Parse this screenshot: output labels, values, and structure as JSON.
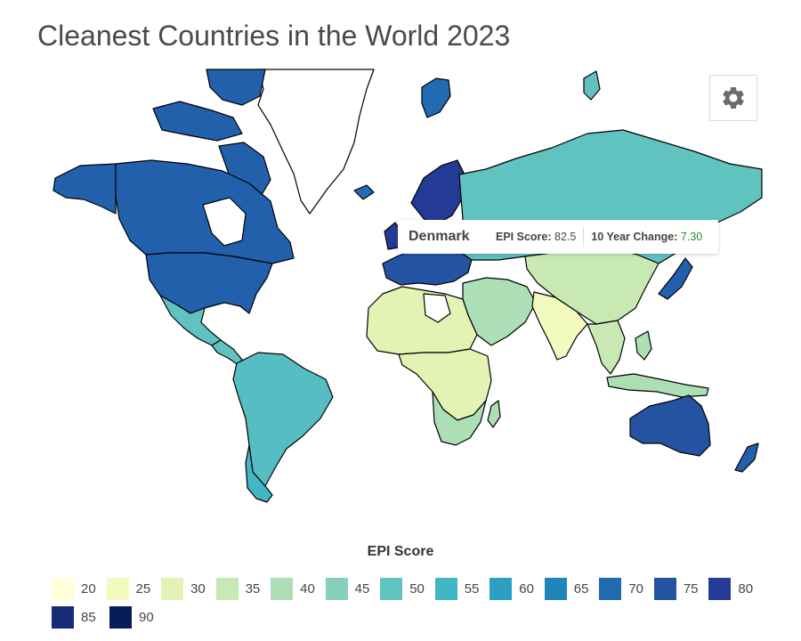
{
  "title": "Cleanest Countries in the World 2023",
  "tooltip": {
    "country": "Denmark",
    "epi_label": "EPI Score:",
    "epi_value": "82.5",
    "change_label": "10 Year Change:",
    "change_value": "7.30"
  },
  "settings": {
    "icon": "gear-icon"
  },
  "legend": {
    "title": "EPI Score",
    "rows": [
      [
        {
          "label": "20",
          "color": "#ffffd9"
        },
        {
          "label": "25",
          "color": "#f3fabe"
        },
        {
          "label": "30",
          "color": "#e3f3b3"
        },
        {
          "label": "35",
          "color": "#c9e9b4"
        },
        {
          "label": "40",
          "color": "#addfb7"
        },
        {
          "label": "45",
          "color": "#86d0bb"
        },
        {
          "label": "50",
          "color": "#61c3c0"
        },
        {
          "label": "55",
          "color": "#41b6c4"
        },
        {
          "label": "60",
          "color": "#2ca0c2"
        },
        {
          "label": "65",
          "color": "#1f86b9"
        },
        {
          "label": "70",
          "color": "#236bb0"
        },
        {
          "label": "75",
          "color": "#2453a2"
        },
        {
          "label": "80",
          "color": "#233b94"
        }
      ],
      [
        {
          "label": "85",
          "color": "#162c79"
        },
        {
          "label": "90",
          "color": "#081d58"
        }
      ]
    ]
  },
  "map_colors": {
    "greenland": "#ffffff",
    "north_america": "#2360ac",
    "alaska": "#2360ac",
    "arctic_islands": "#2360ac",
    "mexico": "#61c3c0",
    "central_america": "#61c3c0",
    "south_america": "#56bdc2",
    "chile": "#41b6c4",
    "europe": "#2453a2",
    "scandinavia": "#233b94",
    "iceland": "#236bb0",
    "uk": "#233b94",
    "svalbard": "#236bb0",
    "russia": "#61c3c0",
    "china": "#c9e9b4",
    "north_africa": "#e3f3b3",
    "africa": "#e3f3b3",
    "southern_africa": "#addfb7",
    "middle_east": "#addfb7",
    "india": "#f3fabe",
    "southeast_asia": "#c9e9b4",
    "indonesia": "#addfb7",
    "japan": "#2360ac",
    "australia": "#2453a2",
    "new_zealand": "#2360ac",
    "madagascar": "#addfb7"
  }
}
